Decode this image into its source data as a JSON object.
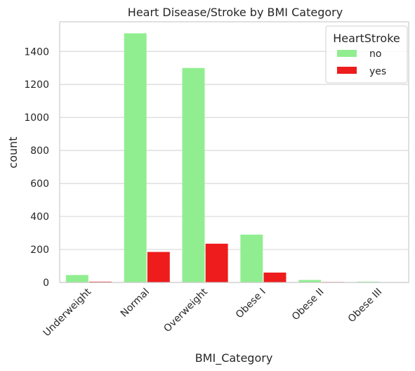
{
  "chart_data": {
    "type": "bar",
    "title": "Heart Disease/Stroke by BMI Category",
    "xlabel": "BMI_Category",
    "ylabel": "count",
    "categories": [
      "Underweight",
      "Normal",
      "Overweight",
      "Obese I",
      "Obese II",
      "Obese III"
    ],
    "series": [
      {
        "name": "no",
        "values": [
          45,
          1510,
          1300,
          290,
          15,
          5
        ],
        "color": "#90ee90"
      },
      {
        "name": "yes",
        "values": [
          5,
          185,
          235,
          60,
          3,
          2
        ],
        "color": "#ee1c1c"
      }
    ],
    "ylim": [
      0,
      1580
    ],
    "yticks": [
      0,
      200,
      400,
      600,
      800,
      1000,
      1200,
      1400
    ],
    "grid": true,
    "legend": {
      "title": "HeartStroke",
      "position": "top-right"
    }
  },
  "colors": {
    "grid": "#d9d9d9",
    "spine": "#cccccc",
    "text": "#262626",
    "background": "#ffffff"
  }
}
